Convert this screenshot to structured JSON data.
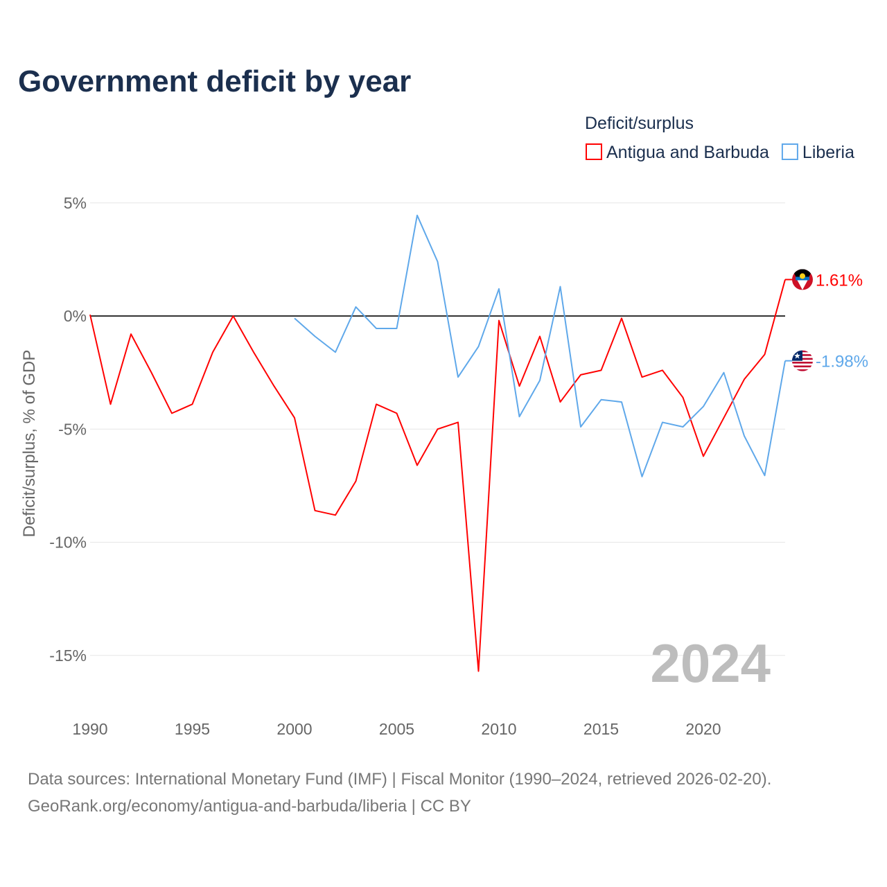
{
  "chart_data": {
    "type": "line",
    "title": "Government deficit by year",
    "ylabel": "Deficit/surplus, % of GDP",
    "xlabel": "",
    "legend_title": "Deficit/surplus",
    "legend_placement": "top-right",
    "year_watermark": "2024",
    "xlim": [
      1990,
      2024
    ],
    "ylim": [
      -16.5,
      5.5
    ],
    "x_ticks": [
      1990,
      1995,
      2000,
      2005,
      2010,
      2015,
      2020
    ],
    "x_tick_labels": [
      "1990",
      "1995",
      "2000",
      "2005",
      "2010",
      "2015",
      "2020"
    ],
    "y_ticks": [
      5,
      0,
      -5,
      -10,
      -15
    ],
    "y_tick_labels": [
      "5%",
      "0%",
      "-5%",
      "-10%",
      "-15%"
    ],
    "grid": true,
    "series": [
      {
        "name": "Antigua and Barbuda",
        "color": "#ff0000",
        "end_label": "1.61%",
        "flag": "antigua-and-barbuda-flag",
        "x": [
          1990,
          1991,
          1992,
          1993,
          1994,
          1995,
          1996,
          1997,
          1998,
          1999,
          2000,
          2001,
          2002,
          2003,
          2004,
          2005,
          2006,
          2007,
          2008,
          2009,
          2010,
          2011,
          2012,
          2013,
          2014,
          2015,
          2016,
          2017,
          2018,
          2019,
          2020,
          2021,
          2022,
          2023,
          2024
        ],
        "values": [
          0.06,
          -3.9,
          -0.8,
          -2.5,
          -4.3,
          -3.9,
          -1.6,
          0.0,
          -1.6,
          -3.1,
          -4.5,
          -8.6,
          -8.8,
          -7.3,
          -3.9,
          -4.3,
          -6.6,
          -5.0,
          -4.7,
          -15.7,
          -0.2,
          -3.1,
          -0.9,
          -3.8,
          -2.6,
          -2.4,
          -0.1,
          -2.7,
          -2.4,
          -3.6,
          -6.2,
          -4.5,
          -2.8,
          -1.7,
          1.61
        ]
      },
      {
        "name": "Liberia",
        "color": "#5fa8ea",
        "end_label": "-1.98%",
        "flag": "liberia-flag",
        "x": [
          2000,
          2001,
          2002,
          2003,
          2004,
          2005,
          2006,
          2007,
          2008,
          2009,
          2010,
          2011,
          2012,
          2013,
          2014,
          2015,
          2016,
          2017,
          2018,
          2019,
          2020,
          2021,
          2022,
          2023,
          2024
        ],
        "values": [
          -0.1,
          -0.9,
          -1.6,
          0.4,
          -0.55,
          -0.55,
          4.45,
          2.4,
          -2.7,
          -1.35,
          1.2,
          -4.45,
          -2.85,
          1.3,
          -4.9,
          -3.7,
          -3.8,
          -7.1,
          -4.7,
          -4.9,
          -4.0,
          -2.5,
          -5.3,
          -7.05,
          -1.98
        ]
      }
    ]
  },
  "footer": {
    "source": "Data sources: International Monetary Fund (IMF) | Fiscal Monitor (1990–2024, retrieved 2026-02-20).",
    "credit": "GeoRank.org/economy/antigua-and-barbuda/liberia | CC BY"
  }
}
